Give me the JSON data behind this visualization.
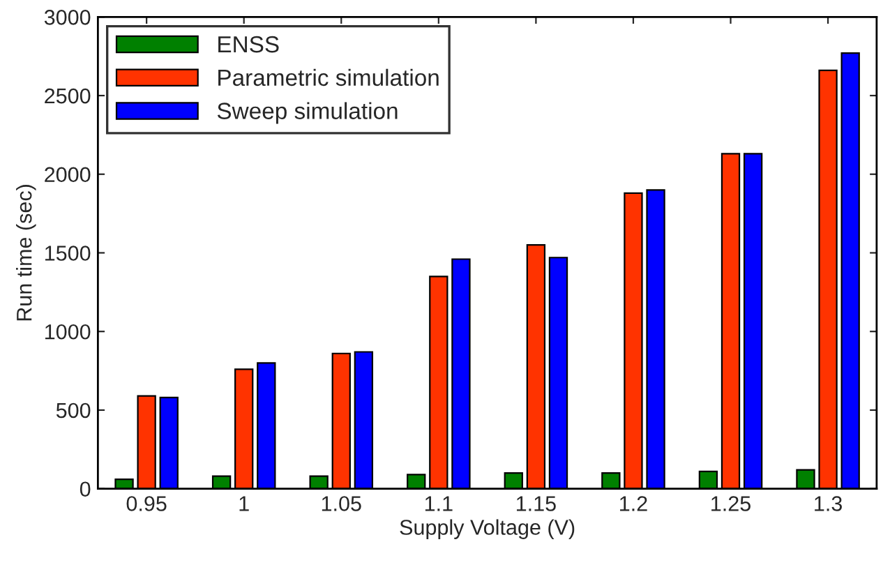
{
  "chart_data": {
    "type": "bar",
    "xlabel": "Supply Voltage (V)",
    "ylabel": "Run time (sec)",
    "categories": [
      "0.95",
      "1",
      "1.05",
      "1.1",
      "1.15",
      "1.2",
      "1.25",
      "1.3"
    ],
    "series": [
      {
        "name": "ENSS",
        "color": "#008000",
        "values": [
          60,
          80,
          80,
          90,
          100,
          100,
          110,
          120
        ]
      },
      {
        "name": "Parametric simulation",
        "color": "#ff3300",
        "values": [
          590,
          760,
          860,
          1350,
          1550,
          1880,
          2130,
          2660
        ]
      },
      {
        "name": "Sweep simulation",
        "color": "#0000ff",
        "values": [
          580,
          800,
          870,
          1460,
          1470,
          1900,
          2130,
          2770
        ]
      }
    ],
    "ylim": [
      0,
      3000
    ],
    "yticks": [
      0,
      500,
      1000,
      1500,
      2000,
      2500,
      3000
    ],
    "grid": false,
    "legend": "top left"
  }
}
